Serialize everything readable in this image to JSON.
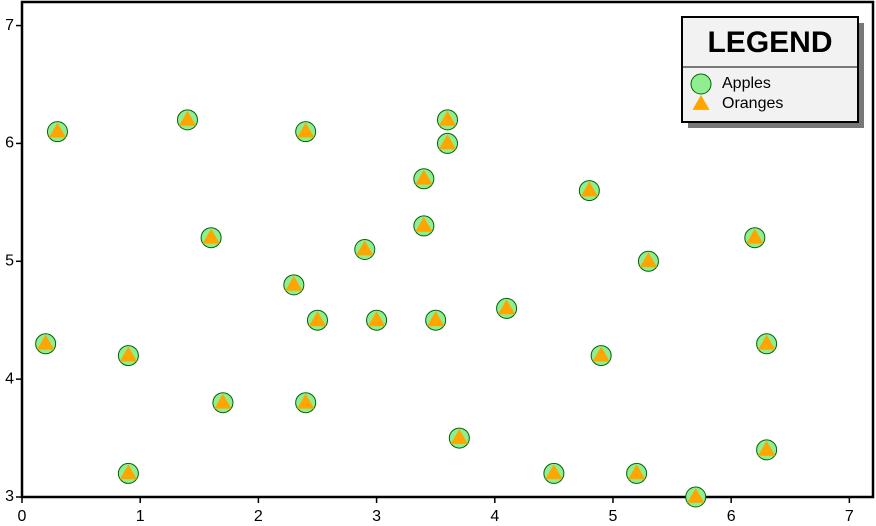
{
  "chart_data": {
    "type": "scatter",
    "legend_title": "LEGEND",
    "legend_position": "upper right",
    "x": [
      0.3,
      1.4,
      2.4,
      3.6,
      3.6,
      3.4,
      4.8,
      1.6,
      2.9,
      3.4,
      6.2,
      5.3,
      2.3,
      2.5,
      3.0,
      3.5,
      4.1,
      0.2,
      0.9,
      4.9,
      6.3,
      1.7,
      2.4,
      3.7,
      0.9,
      4.5,
      5.2,
      6.3,
      5.7
    ],
    "series": [
      {
        "name": "Apples",
        "marker": "circle",
        "color": "#90ee90",
        "values": [
          6.1,
          6.2,
          6.1,
          6.2,
          6.0,
          5.7,
          5.6,
          5.2,
          5.1,
          5.3,
          5.2,
          5.0,
          4.8,
          4.5,
          4.5,
          4.5,
          4.6,
          4.3,
          4.2,
          4.2,
          4.3,
          3.8,
          3.8,
          3.5,
          3.2,
          3.2,
          3.2,
          3.4,
          3.0
        ]
      },
      {
        "name": "Oranges",
        "marker": "triangle",
        "color": "#ffa500",
        "values": [
          6.1,
          6.2,
          6.1,
          6.2,
          6.0,
          5.7,
          5.6,
          5.2,
          5.1,
          5.3,
          5.2,
          5.0,
          4.8,
          4.5,
          4.5,
          4.5,
          4.6,
          4.3,
          4.2,
          4.2,
          4.3,
          3.8,
          3.8,
          3.5,
          3.2,
          3.2,
          3.2,
          3.4,
          3.0
        ]
      }
    ],
    "xlim": [
      0,
      7.2
    ],
    "ylim": [
      3,
      7.2
    ],
    "xticks": [
      0,
      1,
      2,
      3,
      4,
      5,
      6,
      7
    ],
    "yticks": [
      3,
      4,
      5,
      6,
      7
    ]
  }
}
